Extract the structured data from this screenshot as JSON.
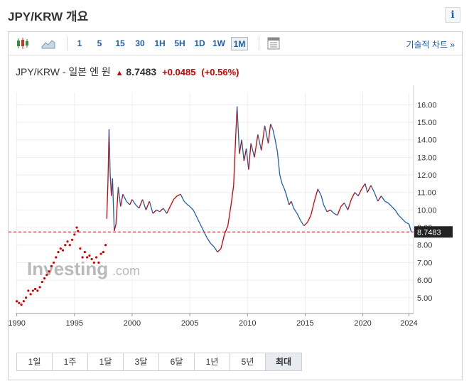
{
  "page": {
    "title": "JPY/KRW 개요"
  },
  "toolbar": {
    "intervals": [
      "1",
      "5",
      "15",
      "30",
      "1H",
      "5H",
      "1D",
      "1W",
      "1M"
    ],
    "active_interval": "1M",
    "advanced_label": "기술적 차트 »"
  },
  "quote": {
    "name": "JPY/KRW - 일본 엔 원",
    "price": "8.7483",
    "change": "+0.0485",
    "change_pct": "(+0.56%)"
  },
  "watermark": {
    "brand": "Investing",
    "suffix": ".com"
  },
  "range_buttons": [
    "1일",
    "1주",
    "1달",
    "3달",
    "6달",
    "1년",
    "5년",
    "최대"
  ],
  "active_range": "최대",
  "colors": {
    "up": "#d10000",
    "down": "#1f5faa",
    "axis": "#333333",
    "grid": "#eeeeee"
  },
  "chart_data": {
    "type": "line",
    "title": "",
    "xlabel": "",
    "ylabel": "",
    "x_ticks": [
      "1990",
      "1995",
      "2000",
      "2005",
      "2010",
      "2015",
      "2020",
      "2024"
    ],
    "y_ticks": [
      "5.00",
      "6.00",
      "7.00",
      "8.00",
      "9.00",
      "10.00",
      "11.00",
      "12.00",
      "13.00",
      "14.00",
      "15.00",
      "16.00"
    ],
    "xlim": [
      1989.9,
      2024.4
    ],
    "ylim": [
      4.1,
      16.7
    ],
    "last_price": 8.7483,
    "last_price_label": "8.7483",
    "reference_line": 8.7483,
    "grid": true,
    "series": [
      {
        "style": "dots",
        "x": [
          1990.0,
          1990.2,
          1990.4,
          1990.6,
          1990.8,
          1991.0,
          1991.2,
          1991.4,
          1991.6,
          1991.8,
          1992.0,
          1992.2,
          1992.4,
          1992.6,
          1992.8,
          1993.0,
          1993.2,
          1993.4,
          1993.6,
          1993.8,
          1994.0,
          1994.2,
          1994.4,
          1994.6,
          1994.8,
          1995.0,
          1995.2,
          1995.3,
          1995.5,
          1995.7,
          1995.9,
          1996.1,
          1996.3,
          1996.5,
          1996.7,
          1996.9,
          1997.1,
          1997.3,
          1997.5,
          1997.7
        ],
        "y": [
          4.8,
          4.7,
          4.6,
          4.8,
          5.0,
          5.4,
          5.2,
          5.4,
          5.5,
          5.4,
          5.6,
          5.9,
          6.1,
          6.3,
          6.5,
          6.8,
          7.0,
          7.3,
          7.6,
          7.8,
          7.7,
          8.0,
          8.2,
          8.0,
          8.3,
          8.6,
          9.0,
          8.8,
          7.8,
          7.3,
          7.6,
          7.3,
          7.4,
          7.2,
          7.0,
          7.3,
          7.0,
          7.5,
          7.6,
          8.0
        ]
      },
      {
        "style": "line",
        "x": [
          1997.8,
          1997.9,
          1998.0,
          1998.1,
          1998.2,
          1998.3,
          1998.45,
          1998.6,
          1998.8,
          1999.0,
          1999.2,
          1999.5,
          1999.8,
          2000.0,
          2000.3,
          2000.6,
          2000.9,
          2001.2,
          2001.5,
          2001.8,
          2002.1,
          2002.4,
          2002.7,
          2003.0,
          2003.3,
          2003.6,
          2003.9,
          2004.2,
          2004.5,
          2004.8,
          2005.0,
          2005.3,
          2005.6,
          2005.9,
          2006.2,
          2006.5,
          2006.8,
          2007.1,
          2007.4,
          2007.7,
          2008.0,
          2008.3,
          2008.6,
          2008.8,
          2009.0,
          2009.1,
          2009.3,
          2009.5,
          2009.7,
          2009.9,
          2010.1,
          2010.3,
          2010.6,
          2010.9,
          2011.2,
          2011.5,
          2011.8,
          2012.0,
          2012.2,
          2012.4,
          2012.6,
          2012.8,
          2013.0,
          2013.2,
          2013.4,
          2013.6,
          2013.8,
          2014.0,
          2014.3,
          2014.6,
          2014.9,
          2015.2,
          2015.5,
          2015.8,
          2016.1,
          2016.4,
          2016.6,
          2016.9,
          2017.2,
          2017.5,
          2017.8,
          2018.1,
          2018.4,
          2018.7,
          2019.0,
          2019.3,
          2019.6,
          2019.9,
          2020.2,
          2020.4,
          2020.7,
          2021.0,
          2021.3,
          2021.6,
          2021.9,
          2022.2,
          2022.5,
          2022.8,
          2023.1,
          2023.4,
          2023.7,
          2024.0,
          2024.2
        ],
        "y": [
          9.5,
          11.5,
          14.6,
          12.0,
          10.8,
          11.8,
          8.8,
          9.2,
          11.3,
          10.2,
          10.9,
          10.5,
          10.3,
          10.6,
          10.3,
          10.1,
          10.6,
          10.0,
          10.5,
          9.8,
          10.0,
          9.9,
          10.1,
          9.8,
          10.2,
          10.6,
          10.8,
          10.9,
          10.5,
          10.3,
          10.2,
          10.0,
          9.6,
          9.2,
          8.8,
          8.4,
          8.1,
          7.9,
          7.6,
          7.8,
          8.6,
          9.1,
          10.4,
          11.4,
          14.5,
          15.9,
          13.2,
          14.0,
          12.8,
          13.5,
          12.3,
          13.8,
          13.0,
          14.3,
          13.4,
          14.8,
          13.8,
          14.9,
          14.6,
          14.0,
          13.3,
          12.0,
          11.5,
          11.2,
          10.8,
          10.3,
          10.5,
          10.1,
          9.8,
          9.4,
          9.1,
          9.3,
          9.7,
          10.5,
          11.2,
          10.8,
          10.3,
          9.9,
          10.0,
          9.8,
          9.7,
          10.2,
          10.4,
          10.0,
          10.6,
          11.0,
          10.8,
          11.2,
          11.5,
          11.0,
          11.4,
          11.0,
          10.5,
          10.8,
          10.5,
          10.4,
          10.2,
          10.0,
          9.7,
          9.5,
          9.3,
          9.2,
          8.75
        ]
      }
    ]
  }
}
